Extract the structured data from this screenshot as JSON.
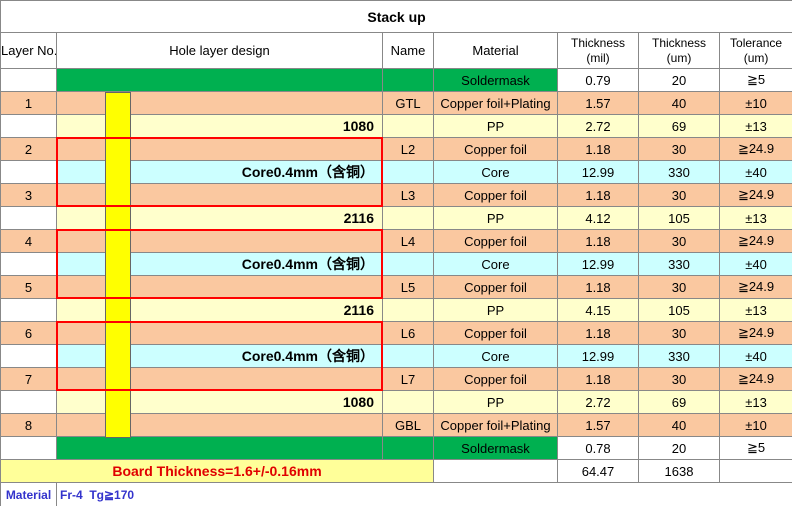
{
  "title": "Stack up",
  "header": [
    "Layer No.",
    "Hole layer design",
    "Name",
    "Material",
    "Thickness\n(mil)",
    "Thickness\n(um)",
    "Tolerance\n(um)"
  ],
  "rows": [
    {
      "layer": null,
      "design": null,
      "name": null,
      "material": "Soldermask",
      "mil": 0.79,
      "um": 20,
      "tol": "≧5",
      "fill": [
        "#ffffff",
        "#00b050",
        "#ffffff"
      ]
    },
    {
      "layer": 1,
      "design": null,
      "name": "GTL",
      "material": "Copper foil+Plating",
      "mil": 1.57,
      "um": 40,
      "tol": "±10",
      "fill": [
        "#fac8a0",
        "#fac8a0",
        "#fac8a0"
      ]
    },
    {
      "layer": null,
      "design": "1080",
      "name": null,
      "material": "PP",
      "mil": 2.72,
      "um": 69,
      "tol": "±13",
      "fill": [
        "#ffffff",
        "#ffffcc",
        "#ffffcc"
      ]
    },
    {
      "layer": 2,
      "design": null,
      "name": "L2",
      "material": "Copper foil",
      "mil": 1.18,
      "um": 30,
      "tol": "≧24.9",
      "fill": [
        "#fac8a0",
        "#fac8a0",
        "#fac8a0"
      ]
    },
    {
      "layer": null,
      "design": "Core0.4mm（含铜）",
      "name": null,
      "material": "Core",
      "mil": 12.99,
      "um": 330,
      "tol": "±40",
      "fill": [
        "#ffffff",
        "#ccffff",
        "#ccffff"
      ]
    },
    {
      "layer": 3,
      "design": null,
      "name": "L3",
      "material": "Copper foil",
      "mil": 1.18,
      "um": 30,
      "tol": "≧24.9",
      "fill": [
        "#fac8a0",
        "#fac8a0",
        "#fac8a0"
      ]
    },
    {
      "layer": null,
      "design": "2116",
      "name": null,
      "material": "PP",
      "mil": 4.12,
      "um": 105,
      "tol": "±13",
      "fill": [
        "#ffffff",
        "#ffffcc",
        "#ffffcc"
      ]
    },
    {
      "layer": 4,
      "design": null,
      "name": "L4",
      "material": "Copper foil",
      "mil": 1.18,
      "um": 30,
      "tol": "≧24.9",
      "fill": [
        "#fac8a0",
        "#fac8a0",
        "#fac8a0"
      ]
    },
    {
      "layer": null,
      "design": "Core0.4mm（含铜）",
      "name": null,
      "material": "Core",
      "mil": 12.99,
      "um": 330,
      "tol": "±40",
      "fill": [
        "#ffffff",
        "#ccffff",
        "#ccffff"
      ]
    },
    {
      "layer": 5,
      "design": null,
      "name": "L5",
      "material": "Copper foil",
      "mil": 1.18,
      "um": 30,
      "tol": "≧24.9",
      "fill": [
        "#fac8a0",
        "#fac8a0",
        "#fac8a0"
      ]
    },
    {
      "layer": null,
      "design": "2116",
      "name": null,
      "material": "PP",
      "mil": 4.15,
      "um": 105,
      "tol": "±13",
      "fill": [
        "#ffffff",
        "#ffffcc",
        "#ffffcc"
      ]
    },
    {
      "layer": 6,
      "design": null,
      "name": "L6",
      "material": "Copper foil",
      "mil": 1.18,
      "um": 30,
      "tol": "≧24.9",
      "fill": [
        "#fac8a0",
        "#fac8a0",
        "#fac8a0"
      ]
    },
    {
      "layer": null,
      "design": "Core0.4mm（含铜）",
      "name": null,
      "material": "Core",
      "mil": 12.99,
      "um": 330,
      "tol": "±40",
      "fill": [
        "#ffffff",
        "#ccffff",
        "#ccffff"
      ]
    },
    {
      "layer": 7,
      "design": null,
      "name": "L7",
      "material": "Copper foil",
      "mil": 1.18,
      "um": 30,
      "tol": "≧24.9",
      "fill": [
        "#fac8a0",
        "#fac8a0",
        "#fac8a0"
      ]
    },
    {
      "layer": null,
      "design": "1080",
      "name": null,
      "material": "PP",
      "mil": 2.72,
      "um": 69,
      "tol": "±13",
      "fill": [
        "#ffffff",
        "#ffffcc",
        "#ffffcc"
      ]
    },
    {
      "layer": 8,
      "design": null,
      "name": "GBL",
      "material": "Copper foil+Plating",
      "mil": 1.57,
      "um": 40,
      "tol": "±10",
      "fill": [
        "#fac8a0",
        "#fac8a0",
        "#fac8a0"
      ]
    },
    {
      "layer": null,
      "design": null,
      "name": null,
      "material": "Soldermask",
      "mil": 0.78,
      "um": 20,
      "tol": "≧5",
      "fill": [
        "#ffffff",
        "#00b050",
        "#ffffff"
      ]
    }
  ],
  "total": {
    "label": "Board Thickness=1.6+/-0.16mm",
    "mil": 64.47,
    "um": 1638
  },
  "footer": {
    "label": "Material",
    "value": "Fr-4  Tg≧170"
  }
}
